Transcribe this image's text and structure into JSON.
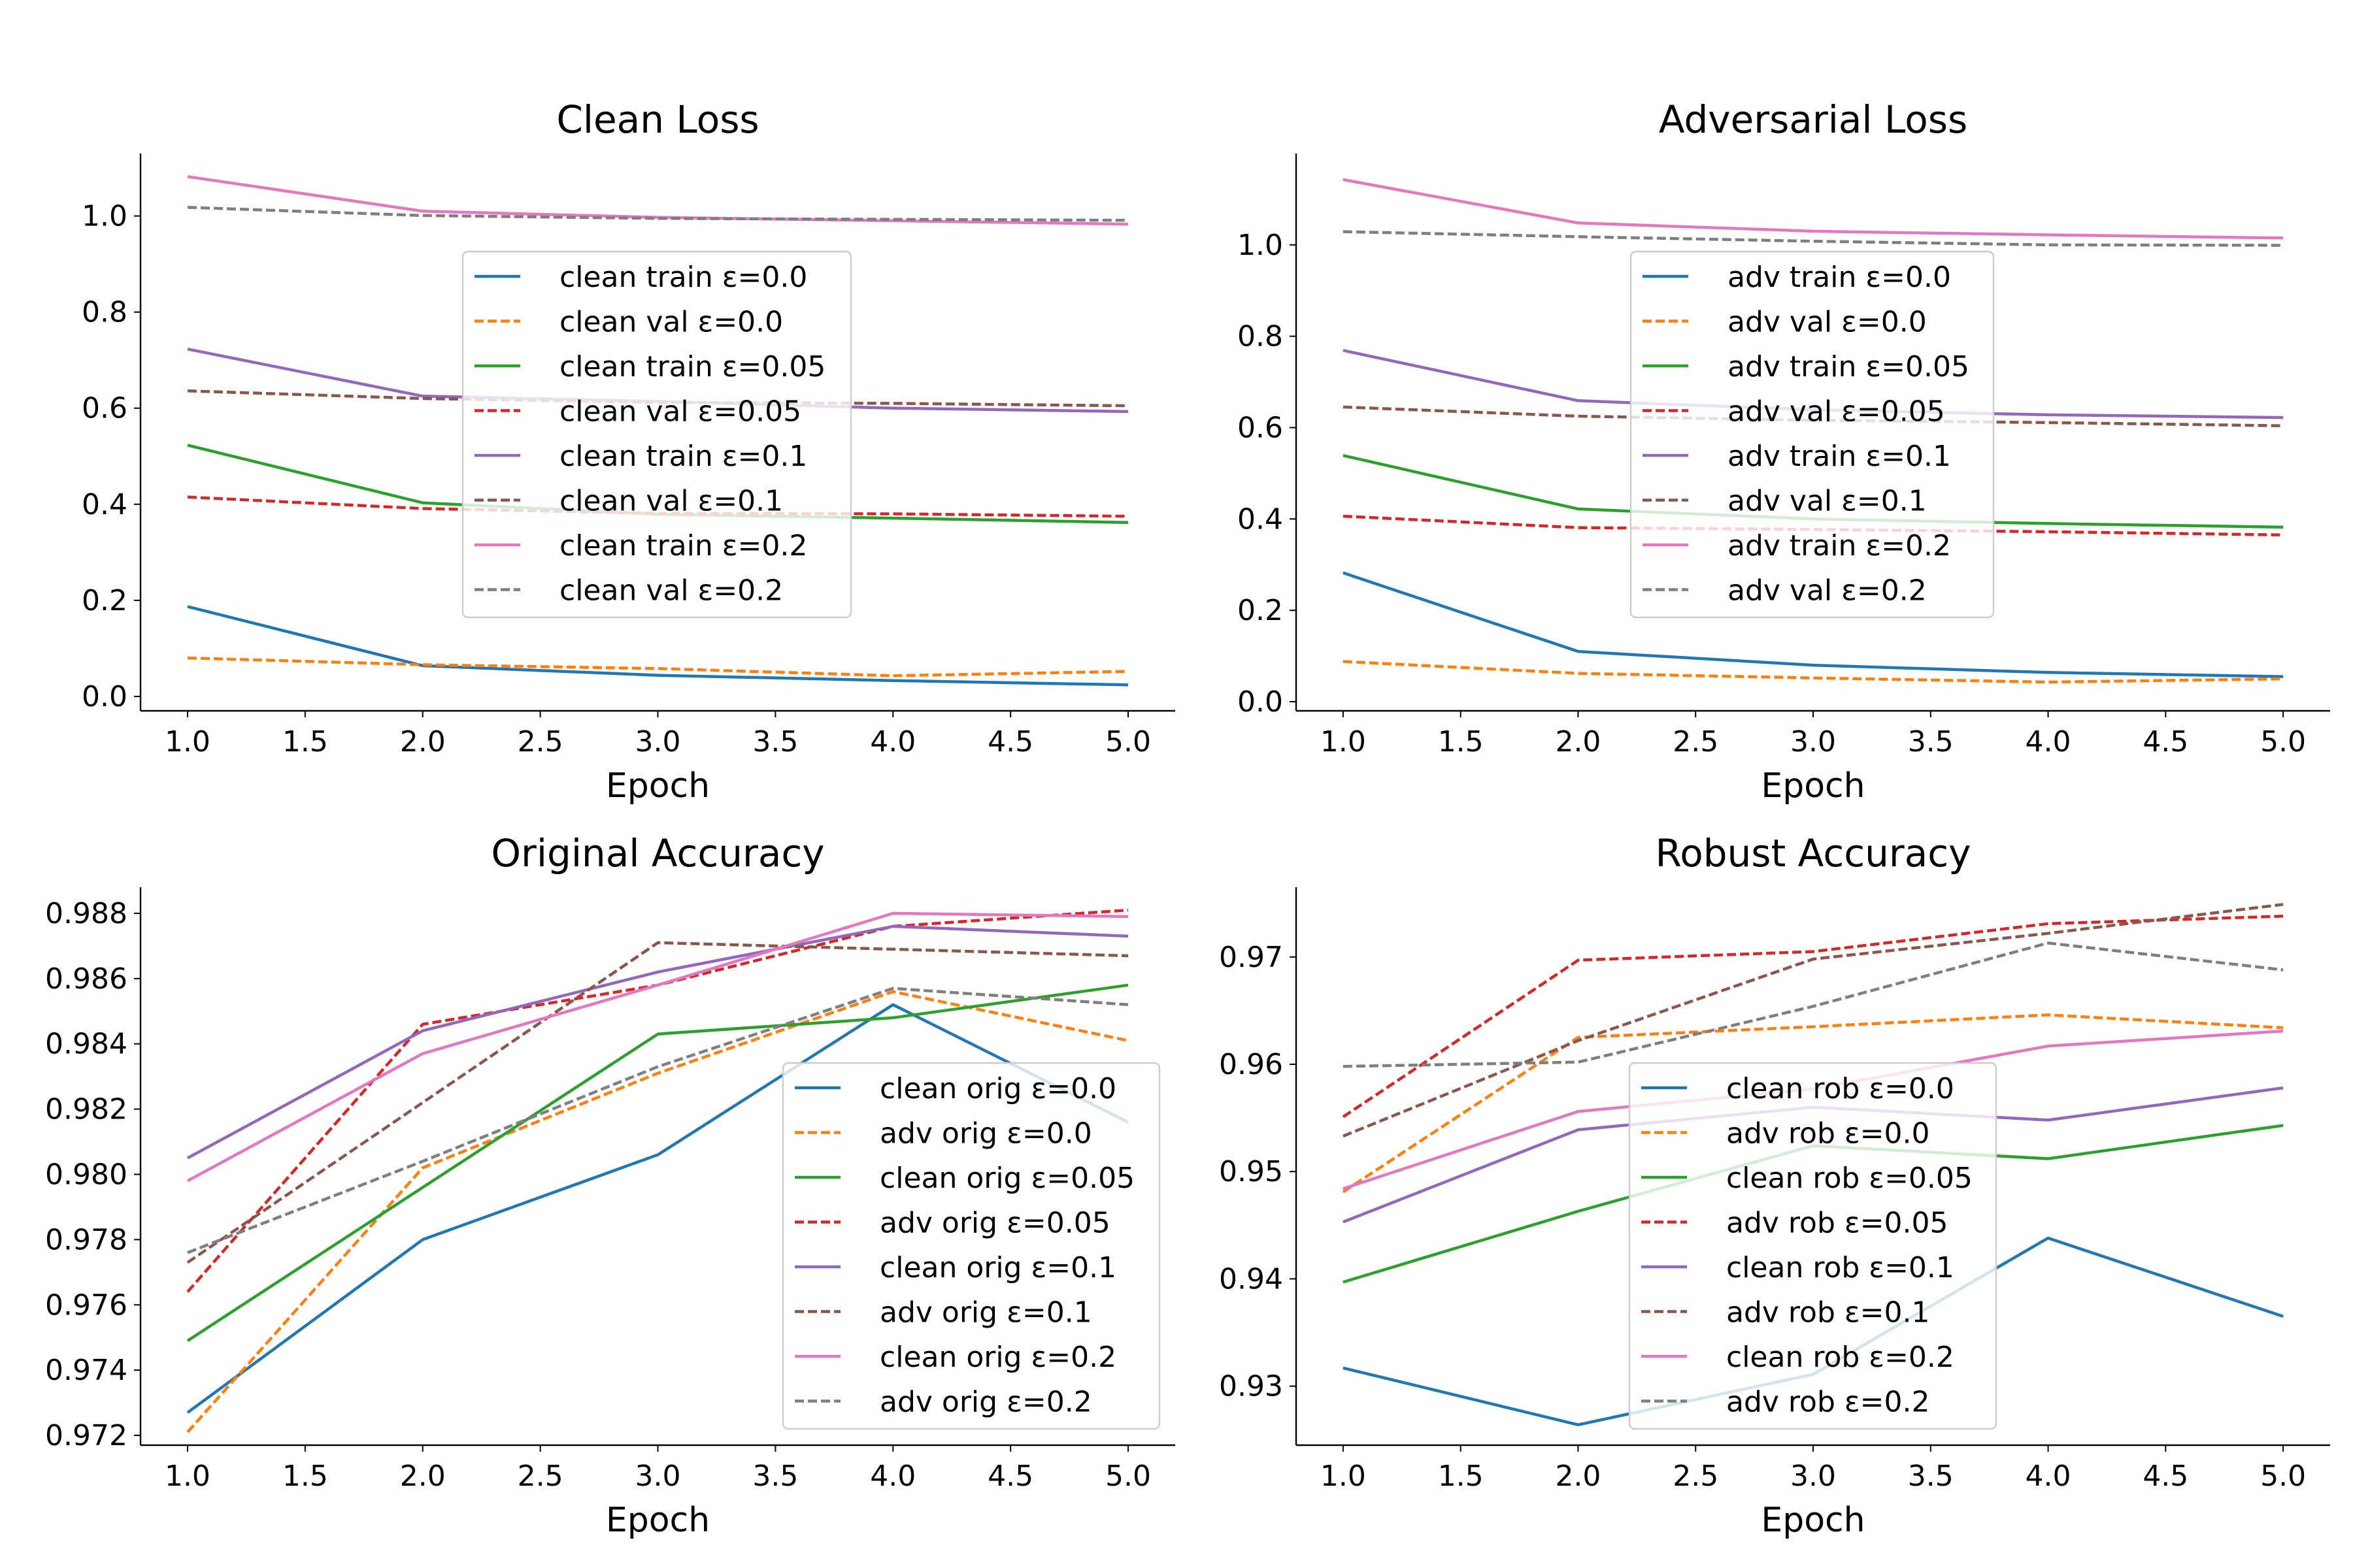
{
  "chart_data": [
    {
      "type": "line",
      "title": "Clean Loss",
      "xlabel": "Epoch",
      "ylabel": "",
      "x": [
        1,
        2,
        3,
        4,
        5
      ],
      "xlim": [
        0.8,
        5.2
      ],
      "ylim": [
        -0.03,
        1.13
      ],
      "xticks": [
        1.0,
        1.5,
        2.0,
        2.5,
        3.0,
        3.5,
        4.0,
        4.5,
        5.0
      ],
      "yticks": [
        0.0,
        0.2,
        0.4,
        0.6,
        0.8,
        1.0
      ],
      "ytick_decimals": 1,
      "legend_location": "center",
      "series": [
        {
          "name": "clean train ε=0.0",
          "color": "#1f77b4",
          "dash": "solid",
          "values": [
            0.187,
            0.064,
            0.044,
            0.033,
            0.024
          ]
        },
        {
          "name": "clean val ε=0.0",
          "color": "#ff7f0e",
          "dash": "dashed",
          "values": [
            0.08,
            0.066,
            0.058,
            0.043,
            0.052
          ]
        },
        {
          "name": "clean train ε=0.05",
          "color": "#2ca02c",
          "dash": "solid",
          "values": [
            0.523,
            0.403,
            0.379,
            0.371,
            0.362
          ]
        },
        {
          "name": "clean val ε=0.05",
          "color": "#d62728",
          "dash": "dashed",
          "values": [
            0.415,
            0.391,
            0.381,
            0.38,
            0.375
          ]
        },
        {
          "name": "clean train ε=0.1",
          "color": "#9467bd",
          "dash": "solid",
          "values": [
            0.723,
            0.625,
            0.614,
            0.6,
            0.593
          ]
        },
        {
          "name": "clean val ε=0.1",
          "color": "#8c564b",
          "dash": "dashed",
          "values": [
            0.636,
            0.62,
            0.612,
            0.61,
            0.605
          ]
        },
        {
          "name": "clean train ε=0.2",
          "color": "#e377c2",
          "dash": "solid",
          "values": [
            1.082,
            1.01,
            0.997,
            0.99,
            0.983
          ]
        },
        {
          "name": "clean val ε=0.2",
          "color": "#7f7f7f",
          "dash": "dashed",
          "values": [
            1.018,
            1.001,
            0.995,
            0.993,
            0.991
          ]
        }
      ]
    },
    {
      "type": "line",
      "title": "Adversarial Loss",
      "xlabel": "Epoch",
      "ylabel": "",
      "x": [
        1,
        2,
        3,
        4,
        5
      ],
      "xlim": [
        0.8,
        5.2
      ],
      "ylim": [
        -0.02,
        1.2
      ],
      "xticks": [
        1.0,
        1.5,
        2.0,
        2.5,
        3.0,
        3.5,
        4.0,
        4.5,
        5.0
      ],
      "yticks": [
        0.0,
        0.2,
        0.4,
        0.6,
        0.8,
        1.0
      ],
      "ytick_decimals": 1,
      "legend_location": "center",
      "series": [
        {
          "name": "adv train ε=0.0",
          "color": "#1f77b4",
          "dash": "solid",
          "values": [
            0.282,
            0.11,
            0.08,
            0.064,
            0.055
          ]
        },
        {
          "name": "adv val ε=0.0",
          "color": "#ff7f0e",
          "dash": "dashed",
          "values": [
            0.088,
            0.062,
            0.052,
            0.043,
            0.05
          ]
        },
        {
          "name": "adv train ε=0.05",
          "color": "#2ca02c",
          "dash": "solid",
          "values": [
            0.539,
            0.422,
            0.4,
            0.39,
            0.382
          ]
        },
        {
          "name": "adv val ε=0.05",
          "color": "#d62728",
          "dash": "dashed",
          "values": [
            0.406,
            0.381,
            0.377,
            0.372,
            0.365
          ]
        },
        {
          "name": "adv train ε=0.1",
          "color": "#9467bd",
          "dash": "solid",
          "values": [
            0.769,
            0.659,
            0.639,
            0.628,
            0.622
          ]
        },
        {
          "name": "adv val ε=0.1",
          "color": "#8c564b",
          "dash": "dashed",
          "values": [
            0.645,
            0.625,
            0.616,
            0.611,
            0.604
          ]
        },
        {
          "name": "adv train ε=0.2",
          "color": "#e377c2",
          "dash": "solid",
          "values": [
            1.143,
            1.048,
            1.03,
            1.022,
            1.015
          ]
        },
        {
          "name": "adv val ε=0.2",
          "color": "#7f7f7f",
          "dash": "dashed",
          "values": [
            1.029,
            1.018,
            1.008,
            1.0,
            0.999
          ]
        }
      ]
    },
    {
      "type": "line",
      "title": "Original Accuracy",
      "xlabel": "Epoch",
      "ylabel": "",
      "x": [
        1,
        2,
        3,
        4,
        5
      ],
      "xlim": [
        0.8,
        5.2
      ],
      "ylim": [
        0.9717,
        0.9888
      ],
      "xticks": [
        1.0,
        1.5,
        2.0,
        2.5,
        3.0,
        3.5,
        4.0,
        4.5,
        5.0
      ],
      "yticks": [
        0.972,
        0.974,
        0.976,
        0.978,
        0.98,
        0.982,
        0.984,
        0.986,
        0.988
      ],
      "ytick_decimals": 3,
      "legend_location": "lower right",
      "series": [
        {
          "name": "clean orig ε=0.0",
          "color": "#1f77b4",
          "dash": "solid",
          "values": [
            0.9727,
            0.978,
            0.9806,
            0.9852,
            0.9816
          ]
        },
        {
          "name": "adv orig ε=0.0",
          "color": "#ff7f0e",
          "dash": "dashed",
          "values": [
            0.9721,
            0.9802,
            0.9831,
            0.9856,
            0.9841
          ]
        },
        {
          "name": "clean orig ε=0.05",
          "color": "#2ca02c",
          "dash": "solid",
          "values": [
            0.9749,
            0.9796,
            0.9843,
            0.9848,
            0.9858
          ]
        },
        {
          "name": "adv orig ε=0.05",
          "color": "#d62728",
          "dash": "dashed",
          "values": [
            0.9764,
            0.9846,
            0.9858,
            0.9876,
            0.9881
          ]
        },
        {
          "name": "clean orig ε=0.1",
          "color": "#9467bd",
          "dash": "solid",
          "values": [
            0.9805,
            0.9844,
            0.9862,
            0.9876,
            0.9873
          ]
        },
        {
          "name": "adv orig ε=0.1",
          "color": "#8c564b",
          "dash": "dashed",
          "values": [
            0.9773,
            0.9822,
            0.9871,
            0.9869,
            0.9867
          ]
        },
        {
          "name": "clean orig ε=0.2",
          "color": "#e377c2",
          "dash": "solid",
          "values": [
            0.9798,
            0.9837,
            0.9858,
            0.988,
            0.9879
          ]
        },
        {
          "name": "adv orig ε=0.2",
          "color": "#7f7f7f",
          "dash": "dashed",
          "values": [
            0.9776,
            0.9804,
            0.9833,
            0.9857,
            0.9852
          ]
        }
      ]
    },
    {
      "type": "line",
      "title": "Robust Accuracy",
      "xlabel": "Epoch",
      "ylabel": "",
      "x": [
        1,
        2,
        3,
        4,
        5
      ],
      "xlim": [
        0.8,
        5.2
      ],
      "ylim": [
        0.9245,
        0.9765
      ],
      "xticks": [
        1.0,
        1.5,
        2.0,
        2.5,
        3.0,
        3.5,
        4.0,
        4.5,
        5.0
      ],
      "yticks": [
        0.93,
        0.94,
        0.95,
        0.96,
        0.97
      ],
      "ytick_decimals": 2,
      "legend_location": "lower center",
      "series": [
        {
          "name": "clean rob ε=0.0",
          "color": "#1f77b4",
          "dash": "solid",
          "values": [
            0.9317,
            0.9264,
            0.9311,
            0.9438,
            0.9365
          ]
        },
        {
          "name": "adv rob ε=0.0",
          "color": "#ff7f0e",
          "dash": "dashed",
          "values": [
            0.9481,
            0.9625,
            0.9635,
            0.9646,
            0.9634
          ]
        },
        {
          "name": "clean rob ε=0.05",
          "color": "#2ca02c",
          "dash": "solid",
          "values": [
            0.9397,
            0.9463,
            0.9524,
            0.9512,
            0.9543
          ]
        },
        {
          "name": "adv rob ε=0.05",
          "color": "#d62728",
          "dash": "dashed",
          "values": [
            0.9551,
            0.9697,
            0.9705,
            0.9731,
            0.9738
          ]
        },
        {
          "name": "clean rob ε=0.1",
          "color": "#9467bd",
          "dash": "solid",
          "values": [
            0.9453,
            0.9539,
            0.956,
            0.9548,
            0.9578
          ]
        },
        {
          "name": "adv rob ε=0.1",
          "color": "#8c564b",
          "dash": "dashed",
          "values": [
            0.9533,
            0.9622,
            0.9698,
            0.9722,
            0.9749
          ]
        },
        {
          "name": "clean rob ε=0.2",
          "color": "#e377c2",
          "dash": "solid",
          "values": [
            0.9484,
            0.9556,
            0.9577,
            0.9617,
            0.9631
          ]
        },
        {
          "name": "adv rob ε=0.2",
          "color": "#7f7f7f",
          "dash": "dashed",
          "values": [
            0.9598,
            0.9602,
            0.9654,
            0.9713,
            0.9688
          ]
        }
      ]
    }
  ]
}
